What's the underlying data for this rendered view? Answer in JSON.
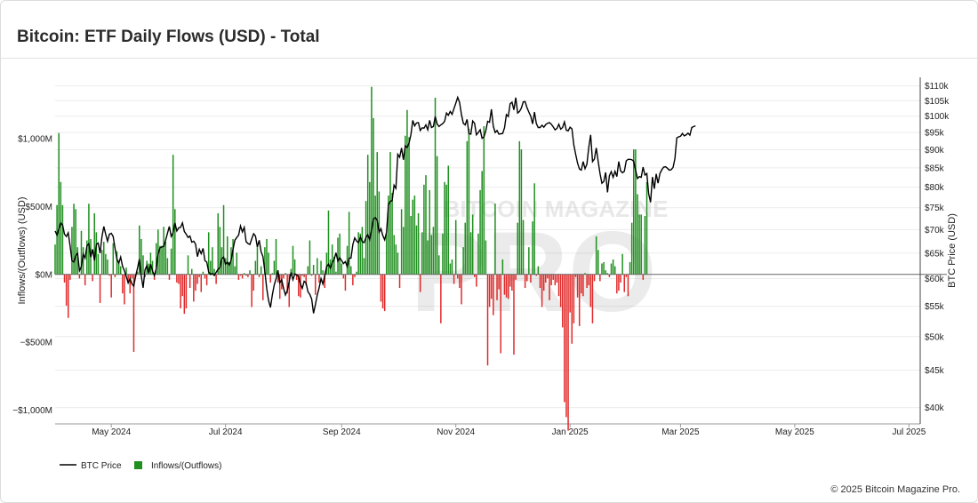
{
  "page": {
    "title": "Bitcoin: ETF Daily Flows (USD) - Total",
    "footer": "© 2025 Bitcoin Magazine Pro."
  },
  "watermark": {
    "text": "BITCOIN MAGAZINE",
    "big": "PRO"
  },
  "colors": {
    "inflow": "#1f8f1f",
    "outflow": "#e02a2a",
    "price": "#000000",
    "grid": "#ececec"
  },
  "chart_data": {
    "type": "bar",
    "title": "Bitcoin: ETF Daily Flows (USD) - Total",
    "ylabel": "Inflows/(Outflows) (USD)",
    "y2label": "BTC Price (USD)",
    "ylim": [
      -1100,
      1450
    ],
    "y2": {
      "log": true,
      "min": 38000,
      "max": 113000
    },
    "x_range": [
      "2024-04-01",
      "2025-07-07"
    ],
    "x_ticks": [
      {
        "label": "May 2024",
        "date": "2024-05-01"
      },
      {
        "label": "Jul 2024",
        "date": "2024-07-01"
      },
      {
        "label": "Sep 2024",
        "date": "2024-09-01"
      },
      {
        "label": "Nov 2024",
        "date": "2024-11-01"
      },
      {
        "label": "Jan 2025",
        "date": "2025-01-01"
      },
      {
        "label": "Mar 2025",
        "date": "2025-03-01"
      },
      {
        "label": "May 2025",
        "date": "2025-05-01"
      },
      {
        "label": "Jul 2025",
        "date": "2025-07-01"
      }
    ],
    "y_ticks": [
      {
        "label": "$1,000M",
        "value": 1000
      },
      {
        "label": "$500M",
        "value": 500
      },
      {
        "label": "$0M",
        "value": 0
      },
      {
        "label": "−$500M",
        "value": -500
      },
      {
        "label": "−$1,000M",
        "value": -1000
      }
    ],
    "y2_ticks": [
      {
        "label": "$110k",
        "value": 110000
      },
      {
        "label": "$105k",
        "value": 105000
      },
      {
        "label": "$100k",
        "value": 100000
      },
      {
        "label": "$95k",
        "value": 95000
      },
      {
        "label": "$90k",
        "value": 90000
      },
      {
        "label": "$85k",
        "value": 85000
      },
      {
        "label": "$80k",
        "value": 80000
      },
      {
        "label": "$75k",
        "value": 75000
      },
      {
        "label": "$70k",
        "value": 70000
      },
      {
        "label": "$65k",
        "value": 65000
      },
      {
        "label": "$60k",
        "value": 60000
      },
      {
        "label": "$55k",
        "value": 55000
      },
      {
        "label": "$50k",
        "value": 50000
      },
      {
        "label": "$45k",
        "value": 45000
      },
      {
        "label": "$40k",
        "value": 40000
      }
    ],
    "legend": {
      "position": "bottom-left",
      "items": [
        "BTC Price",
        "Inflows/(Outflows)"
      ]
    },
    "series": [
      {
        "name": "Inflows/(Outflows)",
        "type": "bar",
        "start": "2024-04-01",
        "values": [
          220,
          510,
          1040,
          680,
          510,
          -60,
          -230,
          -320,
          -40,
          350,
          520,
          480,
          200,
          -30,
          320,
          200,
          -80,
          250,
          520,
          260,
          -50,
          450,
          310,
          150,
          -210,
          180,
          240,
          150,
          110,
          -10,
          -170,
          230,
          -20,
          170,
          100,
          60,
          -140,
          -220,
          50,
          -60,
          -140,
          -30,
          -570,
          -20,
          20,
          360,
          260,
          140,
          -20,
          100,
          80,
          160,
          100,
          -40,
          230,
          330,
          210,
          210,
          350,
          240,
          120,
          -40,
          190,
          880,
          480,
          -60,
          -70,
          -250,
          -160,
          -290,
          -250,
          140,
          -100,
          40,
          -200,
          -120,
          -70,
          -20,
          -130,
          20,
          -30,
          -80,
          310,
          100,
          200,
          40,
          -70,
          450,
          350,
          200,
          510,
          120,
          280,
          90,
          200,
          260,
          60,
          160,
          -40,
          -10,
          -30,
          10,
          -10,
          -20,
          30,
          -240,
          -120,
          100,
          220,
          -20,
          60,
          -190,
          200,
          260,
          160,
          -60,
          10,
          100,
          260,
          -60,
          -180,
          -110,
          -30,
          10,
          -140,
          -240,
          40,
          210,
          110,
          -40,
          -160,
          -170,
          -10,
          -20,
          -80,
          60,
          250,
          -10,
          70,
          -150,
          120,
          -60,
          100,
          30,
          -100,
          160,
          470,
          110,
          220,
          130,
          20,
          270,
          300,
          80,
          -30,
          -120,
          210,
          460,
          60,
          -80,
          -20,
          20,
          310,
          300,
          350,
          120,
          540,
          880,
          680,
          1380,
          1150,
          580,
          900,
          610,
          -200,
          -250,
          -270,
          300,
          580,
          900,
          600,
          290,
          220,
          160,
          -100,
          480,
          350,
          1020,
          1210,
          1010,
          430,
          550,
          580,
          360,
          450,
          -130,
          310,
          660,
          730,
          250,
          620,
          290,
          350,
          1300,
          870,
          140,
          -360,
          300,
          680,
          660,
          800,
          80,
          110,
          -70,
          400,
          -30,
          -100,
          -220,
          200,
          380,
          980,
          1070,
          310,
          440,
          -20,
          -90,
          300,
          620,
          760,
          1090,
          250,
          -670,
          -240,
          -180,
          -300,
          520,
          -190,
          -110,
          -580,
          110,
          -150,
          -170,
          -180,
          -90,
          -120,
          -590,
          -40,
          380,
          980,
          920,
          400,
          -100,
          -50,
          200,
          -60,
          390,
          670,
          -10,
          60,
          -100,
          -240,
          -120,
          -60,
          -30,
          -190,
          -80,
          -40,
          -80,
          -60,
          -160,
          -240,
          -390,
          -940,
          -1050,
          -1150,
          -280,
          -510,
          -360,
          -20,
          -170,
          -380,
          -140,
          -160,
          10,
          -100,
          -80,
          -240,
          -360,
          -50,
          280,
          180,
          -50,
          80,
          90,
          30,
          10,
          -20,
          80,
          110,
          60,
          -140,
          -120,
          -60,
          150,
          -130,
          -20,
          -160,
          90,
          380,
          920,
          920,
          590,
          440,
          440,
          -40,
          430,
          680
        ]
      },
      {
        "name": "BTC Price",
        "type": "line",
        "start": "2024-04-01",
        "values": [
          69700,
          68800,
          70200,
          71500,
          71000,
          69000,
          68500,
          69300,
          66500,
          63500,
          63200,
          64500,
          65000,
          61500,
          62300,
          64800,
          64000,
          66500,
          67000,
          64200,
          65800,
          63500,
          66800,
          67100,
          65000,
          68400,
          70700,
          69000,
          67500,
          69000,
          69200,
          68500,
          66000,
          63800,
          63000,
          64200,
          62400,
          61500,
          60400,
          59200,
          60000,
          59000,
          58600,
          60500,
          62000,
          63800,
          60500,
          58300,
          61700,
          62500,
          61000,
          62800,
          61500,
          60600,
          61900,
          64800,
          66100,
          66300,
          66400,
          67700,
          69200,
          70700,
          68500,
          69300,
          71500,
          69700,
          70400,
          70500,
          71500,
          69600,
          69000,
          68300,
          68600,
          67300,
          67500,
          66900,
          64300,
          65800,
          64900,
          66000,
          63500,
          63200,
          61300,
          60800,
          61000,
          60600,
          61200,
          61800,
          62100,
          63900,
          64200,
          62800,
          63200,
          62600,
          63600,
          65800,
          67700,
          68300,
          68800,
          70800,
          69500,
          70500,
          67400,
          67000,
          66800,
          68000,
          69100,
          68600,
          66300,
          67700,
          65300,
          64300,
          61400,
          58200,
          56000,
          54800,
          57000,
          58800,
          60000,
          61600,
          59200,
          59800,
          58200,
          57000,
          57800,
          59500,
          61200,
          59800,
          60900,
          60700,
          60400,
          59000,
          58200,
          59500,
          59200,
          57600,
          57100,
          56300,
          53800,
          55300,
          57000,
          58300,
          60000,
          59000,
          60600,
          62300,
          62800,
          62000,
          63100,
          63700,
          65100,
          63400,
          64100,
          63500,
          62900,
          63300,
          62300,
          64000,
          64000,
          66800,
          68200,
          67500,
          67200,
          68400,
          67400,
          67200,
          68300,
          68900,
          67800,
          69900,
          72400,
          72700,
          72000,
          69400,
          70200,
          68700,
          67800,
          69400,
          75700,
          76500,
          76700,
          80500,
          79700,
          88700,
          87900,
          90500,
          87200,
          91100,
          90600,
          91900,
          94300,
          98700,
          97000,
          97900,
          98000,
          95600,
          96400,
          96300,
          97300,
          95800,
          98700,
          96500,
          96800,
          99900,
          97600,
          96800,
          97300,
          97700,
          98400,
          101000,
          100300,
          101500,
          100600,
          102400,
          104200,
          106100,
          104400,
          100500,
          97800,
          97300,
          99000,
          94700,
          94500,
          98500,
          97800,
          94300,
          95000,
          95800,
          93300,
          93700,
          95500,
          98400,
          98100,
          102200,
          96900,
          95000,
          95600,
          94500,
          94600,
          94700,
          96400,
          100500,
          99900,
          104000,
          104500,
          102000,
          106000,
          101000,
          101500,
          102600,
          104600,
          104700,
          102700,
          101300,
          100000,
          97600,
          101300,
          97700,
          96500,
          96500,
          97200,
          96600,
          97400,
          97800,
          98000,
          97500,
          96700,
          95800,
          96200,
          97500,
          96000,
          96500,
          98200,
          95700,
          95500,
          96600,
          96100,
          91400,
          88700,
          86300,
          84700,
          84400,
          86700,
          84800,
          86000,
          90700,
          94300,
          86700,
          87400,
          90500,
          86800,
          83500,
          81000,
          81400,
          83800,
          78700,
          82900,
          84000,
          82500,
          84100,
          82700,
          86700,
          84200,
          83700,
          84100,
          86900,
          87300,
          87300,
          87200,
          86800,
          84400,
          82200,
          82700,
          82500,
          85200,
          83100,
          83500,
          78300,
          76300,
          82600,
          79600,
          83400,
          81000,
          83500,
          84500,
          85200,
          85300,
          84900,
          84400,
          84500,
          85100,
          87500,
          93400,
          93700,
          93900,
          94700,
          94000,
          94300,
          94800,
          94200,
          96500,
          96800,
          97000
        ]
      }
    ]
  }
}
